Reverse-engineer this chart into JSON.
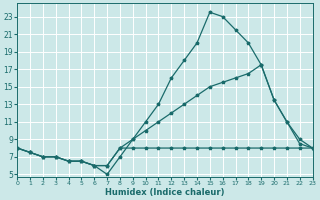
{
  "xlabel": "Humidex (Indice chaleur)",
  "xlim": [
    0,
    23
  ],
  "ylim": [
    5,
    24
  ],
  "yticks": [
    5,
    7,
    9,
    11,
    13,
    15,
    17,
    19,
    21,
    23
  ],
  "xticks": [
    0,
    1,
    2,
    3,
    4,
    5,
    6,
    7,
    8,
    9,
    10,
    11,
    12,
    13,
    14,
    15,
    16,
    17,
    18,
    19,
    20,
    21,
    22,
    23
  ],
  "bg_color": "#cce8e8",
  "grid_color": "#b0d4d4",
  "line_color": "#1a6b6b",
  "lines": [
    {
      "x": [
        0,
        1,
        2,
        3,
        4,
        5,
        6,
        7,
        8,
        9,
        10,
        11,
        12,
        13,
        14,
        15,
        16,
        17,
        18,
        19,
        20,
        21,
        22,
        23
      ],
      "y": [
        8,
        7.5,
        7,
        7,
        6.5,
        6.5,
        6,
        6,
        8,
        8,
        8,
        8,
        8,
        8,
        8,
        8,
        8,
        8,
        8,
        8,
        8,
        8,
        8,
        8
      ]
    },
    {
      "x": [
        0,
        1,
        2,
        3,
        4,
        5,
        6,
        7,
        8,
        9,
        10,
        11,
        12,
        13,
        14,
        15,
        16,
        17,
        18,
        19,
        20,
        21,
        22,
        23
      ],
      "y": [
        8,
        7.5,
        7,
        7,
        6.5,
        6.5,
        6,
        6,
        8,
        9,
        10,
        11,
        12,
        13,
        14,
        15,
        15.5,
        16,
        16.5,
        17.5,
        13.5,
        11,
        9,
        8
      ]
    },
    {
      "x": [
        0,
        1,
        2,
        3,
        4,
        5,
        6,
        7,
        8,
        9,
        10,
        11,
        12,
        13,
        14,
        15,
        16,
        17,
        18,
        19,
        20,
        21,
        22,
        23
      ],
      "y": [
        8,
        7.5,
        7,
        7,
        6.5,
        6.5,
        6,
        5,
        7,
        9,
        11,
        13,
        16,
        18,
        20,
        23.5,
        23,
        21.5,
        20,
        17.5,
        13.5,
        11,
        8.5,
        8
      ]
    }
  ]
}
